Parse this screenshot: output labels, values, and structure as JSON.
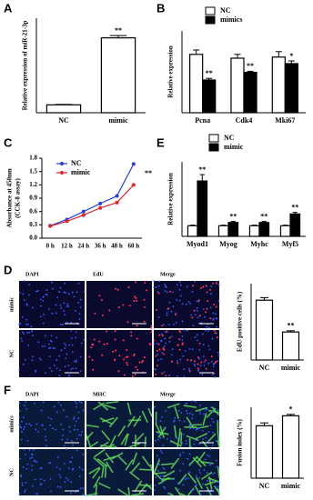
{
  "panels": [
    "A",
    "B",
    "C",
    "D",
    "E",
    "F"
  ],
  "chart_data": [
    {
      "type": "bar",
      "ylabel": [
        "Relative expression of miR-21-3p"
      ],
      "categories": [
        "NC",
        "mimic"
      ],
      "values": [
        1,
        9.5
      ],
      "errors": [
        0.05,
        0.3
      ],
      "color": "#ffffff",
      "ylim": [
        0,
        12
      ],
      "annotations": [
        null,
        "**"
      ]
    },
    {
      "type": "bar",
      "ylabel": [
        "Relative expression"
      ],
      "categories": [
        "Pcna",
        "Cdk4",
        "Mki67"
      ],
      "series": [
        {
          "name": "NC",
          "color": "#ffffff",
          "values": [
            1.07,
            1.0,
            1.02
          ],
          "errors": [
            0.08,
            0.07,
            0.1
          ]
        },
        {
          "name": "mimics",
          "color": "#000000",
          "values": [
            0.6,
            0.74,
            0.9
          ],
          "errors": [
            0.03,
            0.02,
            0.05
          ]
        }
      ],
      "ylim": [
        0,
        1.5
      ],
      "annotations": [
        "**",
        "**",
        "*"
      ]
    },
    {
      "type": "line",
      "ylabel": [
        "Absorbance at 450nm",
        "(CCK-8 assay)"
      ],
      "categories": [
        "0 h",
        "12 h",
        "24 h",
        "36 h",
        "48 h",
        "60 h"
      ],
      "series": [
        {
          "name": "NC",
          "color": "#2a3fd6",
          "values": [
            0.28,
            0.42,
            0.6,
            0.78,
            0.95,
            1.67
          ]
        },
        {
          "name": "mimic",
          "color": "#e0242c",
          "values": [
            0.27,
            0.38,
            0.52,
            0.68,
            0.8,
            1.2
          ]
        }
      ],
      "ylim": [
        0,
        1.8
      ],
      "yticks": [
        {
          "value": 0,
          "label": "0.0"
        },
        0.3,
        0.6,
        0.9,
        1.2,
        1.5,
        1.8
      ],
      "annotation": "**"
    },
    {
      "type": "bar",
      "ylabel": [
        "EdU positive cells (%)"
      ],
      "categories": [
        "NC",
        "mimic"
      ],
      "values": [
        47,
        22
      ],
      "errors": [
        2,
        1
      ],
      "color": "#ffffff",
      "ylim": [
        0,
        60
      ],
      "annotations": [
        null,
        "**"
      ]
    },
    {
      "type": "bar",
      "ylabel": [
        "Relative expression"
      ],
      "categories": [
        "Myod1",
        "Myog",
        "Myhc",
        "Myf5"
      ],
      "series": [
        {
          "name": "NC",
          "color": "#ffffff",
          "values": [
            1,
            1,
            1,
            1
          ],
          "errors": [
            0.05,
            0.05,
            0.05,
            0.05
          ]
        },
        {
          "name": "mimic",
          "color": "#000000",
          "values": [
            5.2,
            1.3,
            1.3,
            2.1
          ],
          "errors": [
            0.6,
            0.1,
            0.1,
            0.15
          ]
        }
      ],
      "ylim": [
        0,
        7
      ],
      "annotations": [
        "**",
        "**",
        "**",
        "**"
      ]
    },
    {
      "type": "bar",
      "ylabel": [
        "Fusion index (%)"
      ],
      "categories": [
        "NC",
        "mimic"
      ],
      "values": [
        37,
        44
      ],
      "errors": [
        2,
        1
      ],
      "color": "#ffffff",
      "ylim": [
        0,
        50
      ],
      "annotations": [
        null,
        "*"
      ]
    }
  ],
  "images": {
    "D": {
      "columns": [
        "DAPI",
        "EdU",
        "Merge"
      ],
      "rows": [
        "mimic",
        "NC"
      ]
    },
    "F": {
      "columns": [
        "DAPI",
        "MHC",
        "Merge"
      ],
      "rows": [
        "mimics",
        "NC"
      ]
    }
  }
}
